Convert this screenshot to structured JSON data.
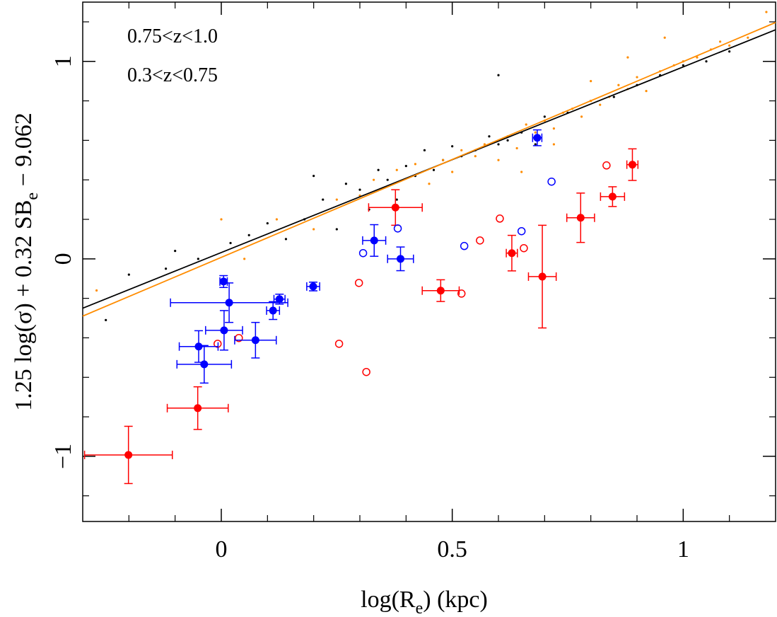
{
  "chart_data": {
    "type": "scatter",
    "x_label_parts": [
      "log(R",
      "e",
      ")  (kpc)"
    ],
    "y_label_parts": [
      "1.25 log(σ) + 0.32 SB",
      "e",
      " − 9.062"
    ],
    "xlim": [
      -0.3,
      1.2
    ],
    "ylim": [
      -1.33,
      1.3
    ],
    "xticks": [
      0,
      0.5,
      1
    ],
    "yticks": [
      {
        "value": -1,
        "label": "−1"
      },
      0,
      1
    ],
    "xminor": [
      -0.2,
      -0.1,
      0.1,
      0.2,
      0.3,
      0.4,
      0.6,
      0.7,
      0.8,
      0.9,
      1.1
    ],
    "yminor": [
      -1.2,
      -0.8,
      -0.6,
      -0.4,
      -0.2,
      0.2,
      0.4,
      0.6,
      0.8,
      1.2
    ],
    "series": [
      {
        "name": "0.75<z<1.0",
        "color": "#ff0000",
        "x": [
          -0.201,
          -0.051,
          0.377,
          0.475,
          0.629,
          0.695,
          0.778,
          0.847,
          0.89
        ],
        "y": [
          -0.993,
          -0.756,
          0.26,
          -0.161,
          0.029,
          -0.09,
          0.208,
          0.315,
          0.477
        ],
        "xerr": [
          0.095,
          0.066,
          0.058,
          0.04,
          0.012,
          0.03,
          0.03,
          0.026,
          0.012
        ],
        "yerr": [
          0.145,
          0.108,
          0.09,
          0.055,
          0.09,
          0.26,
          0.125,
          0.05,
          0.08
        ],
        "open_x": [
          -0.008,
          0.038,
          0.255,
          0.298,
          0.314,
          0.52,
          0.56,
          0.603,
          0.655,
          0.834
        ],
        "open_y": [
          -0.43,
          -0.401,
          -0.43,
          -0.122,
          -0.573,
          -0.176,
          0.093,
          0.204,
          0.054,
          0.473
        ]
      },
      {
        "name": "0.3<z<0.75",
        "color": "#0000ff",
        "x": [
          0.005,
          0.017,
          0.006,
          -0.049,
          -0.037,
          0.074,
          0.112,
          0.126,
          0.199,
          0.331,
          0.388,
          0.684
        ],
        "y": [
          -0.115,
          -0.222,
          -0.362,
          -0.444,
          -0.534,
          -0.412,
          -0.262,
          -0.204,
          -0.14,
          0.093,
          0.0,
          0.613
        ],
        "xerr": [
          0.008,
          0.127,
          0.04,
          0.042,
          0.059,
          0.045,
          0.014,
          0.012,
          0.014,
          0.025,
          0.028,
          0.01
        ],
        "yerr": [
          0.03,
          0.1,
          0.1,
          0.08,
          0.095,
          0.09,
          0.045,
          0.025,
          0.022,
          0.08,
          0.06,
          0.04
        ],
        "open_x": [
          0.307,
          0.382,
          0.526,
          0.65,
          0.715
        ],
        "open_y": [
          0.029,
          0.154,
          0.065,
          0.14,
          0.391
        ]
      },
      {
        "color": "#000000",
        "x": [
          -0.25,
          -0.2,
          -0.12,
          -0.1,
          -0.05,
          0.02,
          0.06,
          0.1,
          0.14,
          0.18,
          0.2,
          0.22,
          0.25,
          0.27,
          0.3,
          0.32,
          0.34,
          0.36,
          0.38,
          0.4,
          0.42,
          0.44,
          0.46,
          0.48,
          0.5,
          0.52,
          0.55,
          0.58,
          0.6,
          0.62,
          0.65,
          0.68,
          0.7,
          0.75,
          0.8,
          0.85,
          0.9,
          0.95,
          1.0,
          1.05,
          1.1,
          0.6
        ],
        "y": [
          -0.31,
          -0.08,
          -0.05,
          0.04,
          0.0,
          0.08,
          0.12,
          0.18,
          0.1,
          0.2,
          0.42,
          0.3,
          0.15,
          0.38,
          0.35,
          0.25,
          0.45,
          0.4,
          0.3,
          0.47,
          0.42,
          0.55,
          0.45,
          0.5,
          0.57,
          0.52,
          0.55,
          0.62,
          0.58,
          0.6,
          0.64,
          0.58,
          0.72,
          0.74,
          0.8,
          0.82,
          0.88,
          0.93,
          0.98,
          1.0,
          1.05,
          0.93
        ]
      },
      {
        "color": "#ff8c00",
        "x": [
          -0.27,
          0.0,
          0.05,
          0.12,
          0.2,
          0.25,
          0.3,
          0.33,
          0.38,
          0.42,
          0.45,
          0.48,
          0.5,
          0.52,
          0.55,
          0.57,
          0.6,
          0.62,
          0.64,
          0.66,
          0.68,
          0.7,
          0.72,
          0.74,
          0.76,
          0.78,
          0.8,
          0.82,
          0.84,
          0.86,
          0.88,
          0.9,
          0.92,
          0.95,
          0.98,
          1.0,
          1.03,
          1.06,
          1.1,
          1.14,
          1.18,
          0.65,
          0.72,
          0.8,
          0.88,
          0.96,
          1.08
        ],
        "y": [
          -0.16,
          0.2,
          0.0,
          0.2,
          0.15,
          0.3,
          0.32,
          0.4,
          0.45,
          0.48,
          0.38,
          0.5,
          0.44,
          0.55,
          0.52,
          0.58,
          0.5,
          0.62,
          0.56,
          0.68,
          0.64,
          0.7,
          0.66,
          0.74,
          0.76,
          0.72,
          0.8,
          0.78,
          0.82,
          0.88,
          0.86,
          0.92,
          0.85,
          0.95,
          0.98,
          1.0,
          1.02,
          1.06,
          1.08,
          1.12,
          1.25,
          0.44,
          0.58,
          0.9,
          1.02,
          1.12,
          1.1
        ]
      }
    ],
    "lines": [
      {
        "color": "#000000",
        "x": [
          -0.3,
          1.2
        ],
        "y": [
          -0.25,
          1.16
        ]
      },
      {
        "color": "#ff8c00",
        "x": [
          -0.3,
          1.2
        ],
        "y": [
          -0.29,
          1.197
        ]
      }
    ]
  }
}
